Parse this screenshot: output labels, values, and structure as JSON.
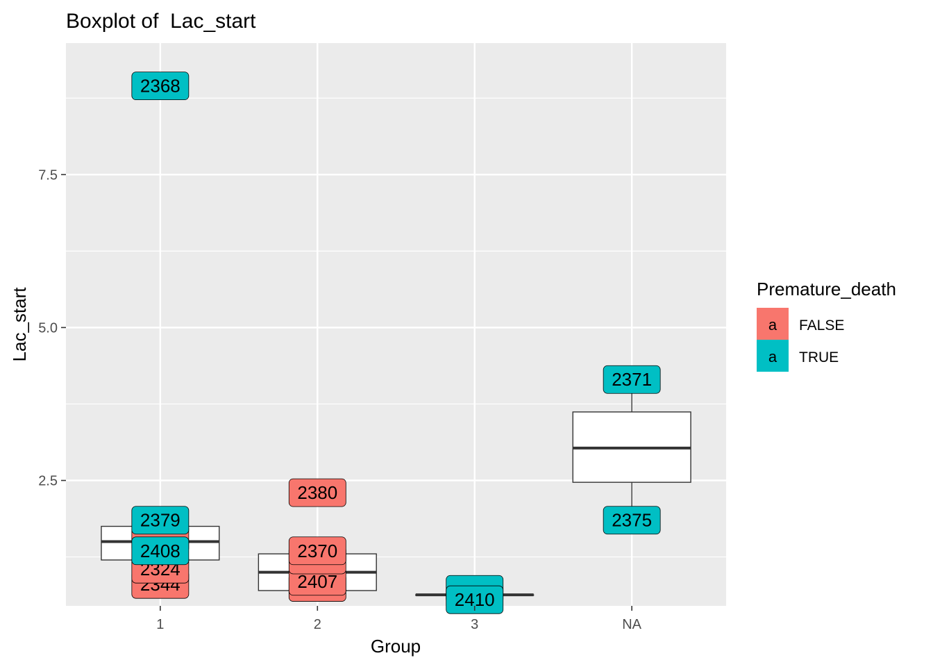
{
  "chart_data": {
    "type": "boxplot",
    "title": "Boxplot of  Lac_start",
    "xlabel": "Group",
    "ylabel": "Lac_start",
    "categories": [
      "1",
      "2",
      "3",
      "NA"
    ],
    "ylim": [
      0.45,
      9.65
    ],
    "y_ticks": [
      2.5,
      5.0,
      7.5
    ],
    "y_tick_labels": [
      "2.5",
      "5.0",
      "7.5"
    ],
    "grid": true,
    "boxes": [
      {
        "category": "1",
        "lower_whisker": 1.2,
        "q1": 1.2,
        "median": 1.5,
        "q3": 1.75,
        "upper_whisker": 1.75
      },
      {
        "category": "2",
        "lower_whisker": 0.7,
        "q1": 0.7,
        "median": 1.0,
        "q3": 1.3,
        "upper_whisker": 1.3
      },
      {
        "category": "3",
        "lower_whisker": 0.63,
        "q1": 0.63,
        "median": 0.63,
        "q3": 0.63,
        "upper_whisker": 0.63
      },
      {
        "category": "NA",
        "lower_whisker": 1.95,
        "q1": 2.47,
        "median": 3.03,
        "q3": 3.62,
        "upper_whisker": 4.15
      }
    ],
    "labels": [
      {
        "text": "2344",
        "category": "1",
        "y": 0.8,
        "group": "FALSE"
      },
      {
        "text": "2324",
        "category": "1",
        "y": 1.05,
        "group": "FALSE"
      },
      {
        "text": "",
        "category": "1",
        "y": 1.55,
        "group": "FALSE"
      },
      {
        "text": "2408",
        "category": "1",
        "y": 1.35,
        "group": "TRUE"
      },
      {
        "text": "2379",
        "category": "1",
        "y": 1.85,
        "group": "TRUE"
      },
      {
        "text": "2368",
        "category": "1",
        "y": 8.95,
        "group": "TRUE"
      },
      {
        "text": "",
        "category": "2",
        "y": 0.75,
        "group": "FALSE"
      },
      {
        "text": "2407",
        "category": "2",
        "y": 0.85,
        "group": "FALSE"
      },
      {
        "text": "",
        "category": "2",
        "y": 1.2,
        "group": "FALSE"
      },
      {
        "text": "2370",
        "category": "2",
        "y": 1.35,
        "group": "FALSE"
      },
      {
        "text": "2380",
        "category": "2",
        "y": 2.3,
        "group": "FALSE"
      },
      {
        "text": "",
        "category": "3",
        "y": 0.72,
        "group": "TRUE"
      },
      {
        "text": "2410",
        "category": "3",
        "y": 0.55,
        "group": "TRUE"
      },
      {
        "text": "2375",
        "category": "NA",
        "y": 1.85,
        "group": "TRUE"
      },
      {
        "text": "2371",
        "category": "NA",
        "y": 4.15,
        "group": "TRUE"
      }
    ],
    "legend": {
      "title": "Premature_death",
      "key_glyph": "a",
      "placement": "right",
      "entries": [
        {
          "label": "FALSE",
          "color": "#F8766D"
        },
        {
          "label": "TRUE",
          "color": "#00BFC4"
        }
      ]
    },
    "colors": {
      "panel_bg": "#EBEBEB",
      "grid": "#FFFFFF",
      "box_fill": "#FFFFFF",
      "box_line": "#333333",
      "tick_text": "#4D4D4D"
    }
  }
}
